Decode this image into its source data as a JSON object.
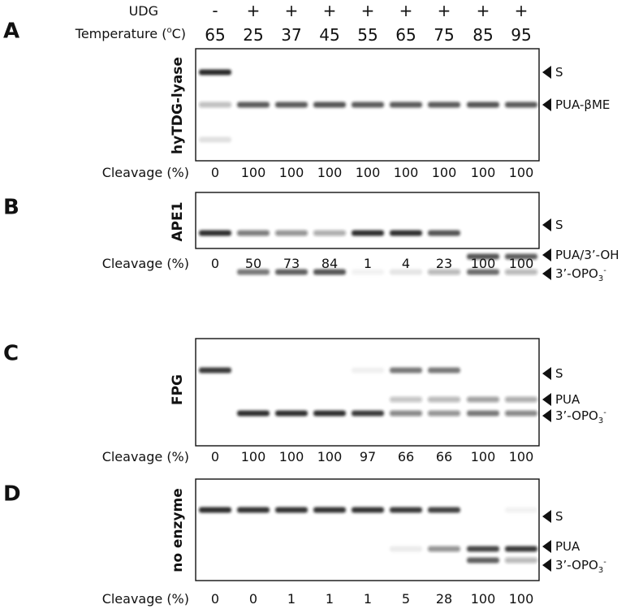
{
  "header": {
    "udg_label": "UDG",
    "temperature_label": "Temperature (",
    "temperature_unit_sup": "o",
    "temperature_unit_tail": "C)",
    "udg_signs": [
      "-",
      "+",
      "+",
      "+",
      "+",
      "+",
      "+",
      "+",
      "+"
    ],
    "temperatures": [
      "65",
      "25",
      "37",
      "45",
      "55",
      "65",
      "75",
      "85",
      "95"
    ]
  },
  "colors": {
    "band": "#1a1a1a",
    "frame": "#111111",
    "background": "#ffffff"
  },
  "panels": [
    {
      "letter": "A",
      "enzyme": "hyTDG-lyase",
      "cleavage_label": "Cleavage (%)",
      "cleavage": [
        "0",
        "100",
        "100",
        "100",
        "100",
        "100",
        "100",
        "100",
        "100"
      ],
      "markers": [
        {
          "parts": [
            {
              "t": "S"
            }
          ]
        },
        {
          "parts": [
            {
              "t": "PUA-βME"
            }
          ]
        }
      ],
      "bands": [
        [
          {
            "m": 0,
            "i": 0.95
          },
          {
            "m": 1,
            "i": 0.28
          },
          {
            "m": 2,
            "i": 0.12
          }
        ],
        [
          {
            "m": 1,
            "i": 0.72
          }
        ],
        [
          {
            "m": 1,
            "i": 0.72
          }
        ],
        [
          {
            "m": 1,
            "i": 0.75
          }
        ],
        [
          {
            "m": 1,
            "i": 0.72
          }
        ],
        [
          {
            "m": 1,
            "i": 0.72
          }
        ],
        [
          {
            "m": 1,
            "i": 0.72
          }
        ],
        [
          {
            "m": 1,
            "i": 0.75
          }
        ],
        [
          {
            "m": 1,
            "i": 0.72
          }
        ]
      ]
    },
    {
      "letter": "B",
      "enzyme": "APE1",
      "cleavage_label": "Cleavage (%)",
      "cleavage": [
        "0",
        "50",
        "73",
        "84",
        "1",
        "4",
        "23",
        "100",
        "100"
      ],
      "markers": [
        {
          "parts": [
            {
              "t": "S"
            }
          ]
        },
        {
          "parts": [
            {
              "t": "PUA/3’-OH"
            }
          ]
        },
        {
          "parts": [
            {
              "t": "3’-OPO"
            },
            {
              "t": "3",
              "s": "sub"
            },
            {
              "t": "-",
              "s": "sup"
            }
          ]
        }
      ],
      "bands": [
        [
          {
            "m": 0,
            "i": 0.9
          }
        ],
        [
          {
            "m": 0,
            "i": 0.55
          },
          {
            "m": 2,
            "i": 0.6
          }
        ],
        [
          {
            "m": 0,
            "i": 0.45
          },
          {
            "m": 2,
            "i": 0.7
          }
        ],
        [
          {
            "m": 0,
            "i": 0.35
          },
          {
            "m": 2,
            "i": 0.75
          }
        ],
        [
          {
            "m": 0,
            "i": 0.9
          },
          {
            "m": 2,
            "i": 0.05
          }
        ],
        [
          {
            "m": 0,
            "i": 0.9
          },
          {
            "m": 2,
            "i": 0.1
          }
        ],
        [
          {
            "m": 0,
            "i": 0.75
          },
          {
            "m": 2,
            "i": 0.3
          }
        ],
        [
          {
            "m": 1,
            "i": 0.75
          },
          {
            "m": 2,
            "i": 0.65
          }
        ],
        [
          {
            "m": 1,
            "i": 0.7
          },
          {
            "m": 2,
            "i": 0.3
          }
        ]
      ]
    },
    {
      "letter": "C",
      "enzyme": "FPG",
      "cleavage_label": "Cleavage (%)",
      "cleavage": [
        "0",
        "100",
        "100",
        "100",
        "97",
        "66",
        "66",
        "100",
        "100"
      ],
      "markers": [
        {
          "parts": [
            {
              "t": "S"
            }
          ]
        },
        {
          "parts": [
            {
              "t": "PUA"
            }
          ]
        },
        {
          "parts": [
            {
              "t": "3’-OPO"
            },
            {
              "t": "3",
              "s": "sub"
            },
            {
              "t": "-",
              "s": "sup"
            }
          ]
        }
      ],
      "bands": [
        [
          {
            "m": 0,
            "i": 0.85
          }
        ],
        [
          {
            "m": 2,
            "i": 0.9
          }
        ],
        [
          {
            "m": 2,
            "i": 0.9
          }
        ],
        [
          {
            "m": 2,
            "i": 0.9
          }
        ],
        [
          {
            "m": 0,
            "i": 0.06
          },
          {
            "m": 2,
            "i": 0.85
          }
        ],
        [
          {
            "m": 0,
            "i": 0.6
          },
          {
            "m": 1,
            "i": 0.25
          },
          {
            "m": 2,
            "i": 0.5
          }
        ],
        [
          {
            "m": 0,
            "i": 0.6
          },
          {
            "m": 1,
            "i": 0.3
          },
          {
            "m": 2,
            "i": 0.45
          }
        ],
        [
          {
            "m": 1,
            "i": 0.4
          },
          {
            "m": 2,
            "i": 0.6
          }
        ],
        [
          {
            "m": 1,
            "i": 0.35
          },
          {
            "m": 2,
            "i": 0.5
          }
        ]
      ]
    },
    {
      "letter": "D",
      "enzyme": "no enzyme",
      "cleavage_label": "Cleavage (%)",
      "cleavage": [
        "0",
        "0",
        "1",
        "1",
        "1",
        "5",
        "28",
        "100",
        "100"
      ],
      "markers": [
        {
          "parts": [
            {
              "t": "S"
            }
          ]
        },
        {
          "parts": [
            {
              "t": "PUA"
            }
          ]
        },
        {
          "parts": [
            {
              "t": "3’-OPO"
            },
            {
              "t": "3",
              "s": "sub"
            },
            {
              "t": "-",
              "s": "sup"
            }
          ]
        }
      ],
      "bands": [
        [
          {
            "m": 0,
            "i": 0.9
          }
        ],
        [
          {
            "m": 0,
            "i": 0.88
          }
        ],
        [
          {
            "m": 0,
            "i": 0.88
          }
        ],
        [
          {
            "m": 0,
            "i": 0.88
          }
        ],
        [
          {
            "m": 0,
            "i": 0.88
          }
        ],
        [
          {
            "m": 0,
            "i": 0.85
          },
          {
            "m": 1,
            "i": 0.08
          }
        ],
        [
          {
            "m": 0,
            "i": 0.82
          },
          {
            "m": 1,
            "i": 0.45
          }
        ],
        [
          {
            "m": 1,
            "i": 0.8
          },
          {
            "m": 2,
            "i": 0.7
          }
        ],
        [
          {
            "m": 0,
            "i": 0.05
          },
          {
            "m": 1,
            "i": 0.85
          },
          {
            "m": 2,
            "i": 0.3
          }
        ]
      ]
    }
  ]
}
